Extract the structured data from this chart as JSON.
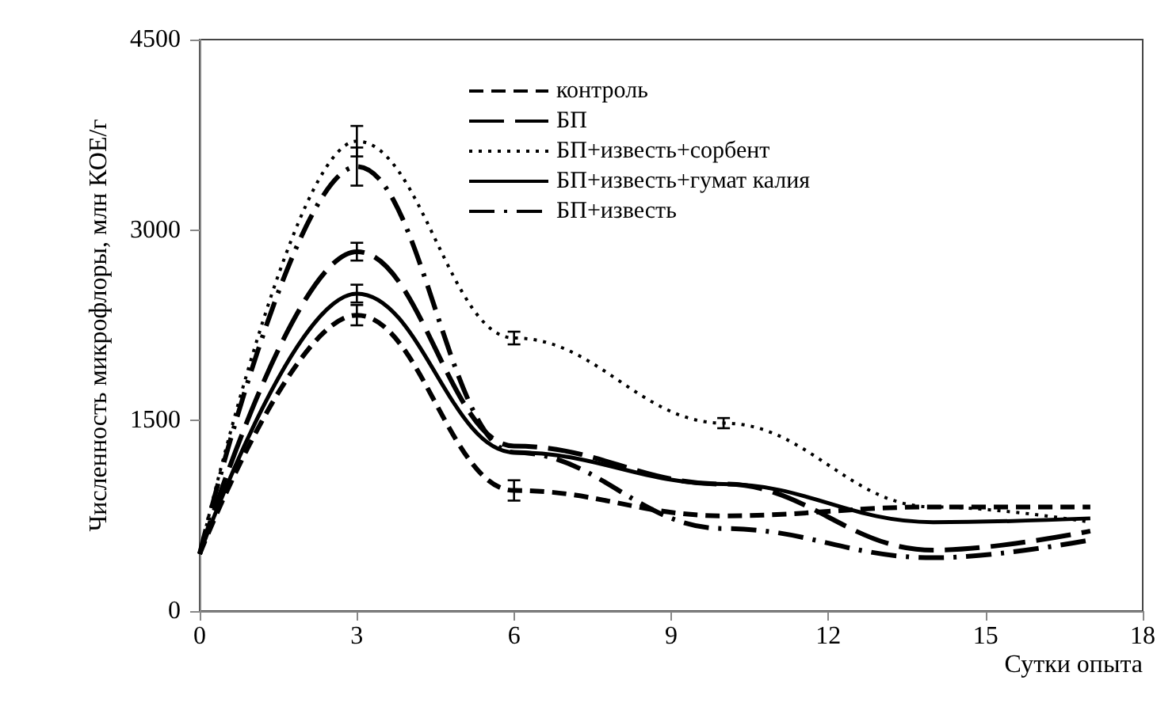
{
  "chart_data": {
    "type": "line",
    "xlabel": "Сутки опыта",
    "ylabel": "Численность микрофлоры, млн КОЕ/г",
    "x": [
      0,
      3,
      6,
      10,
      14,
      17
    ],
    "xlim": [
      0,
      18
    ],
    "xticks": [
      0,
      3,
      6,
      9,
      12,
      15,
      18
    ],
    "ylim": [
      0,
      4500
    ],
    "yticks": [
      0,
      1500,
      3000,
      4500
    ],
    "grid": false,
    "legend": "top right",
    "marker": "none",
    "series": [
      {
        "name": "контроль",
        "color": "#000000",
        "line_style": "dashed",
        "values": [
          450,
          2330,
          950,
          750,
          820,
          820
        ],
        "errors": [
          null,
          80,
          80,
          null,
          null,
          null
        ]
      },
      {
        "name": "БП",
        "color": "#000000",
        "line_style": "longdash",
        "values": [
          450,
          2830,
          1300,
          1000,
          480,
          630
        ],
        "errors": [
          null,
          70,
          null,
          null,
          null,
          null
        ]
      },
      {
        "name": "БП+известь+сорбент",
        "color": "#000000",
        "line_style": "dotted",
        "values": [
          450,
          3700,
          2150,
          1480,
          820,
          700
        ],
        "errors": [
          null,
          120,
          50,
          40,
          null,
          null
        ]
      },
      {
        "name": "БП+известь+гумат калия",
        "color": "#000000",
        "line_style": "solid",
        "values": [
          450,
          2500,
          1250,
          1000,
          700,
          730
        ],
        "errors": [
          null,
          70,
          null,
          null,
          null,
          null
        ]
      },
      {
        "name": "БП+известь",
        "color": "#000000",
        "line_style": "dashdot",
        "values": [
          450,
          3500,
          1250,
          650,
          420,
          560
        ],
        "errors": [
          null,
          150,
          null,
          null,
          null,
          null
        ]
      }
    ]
  }
}
